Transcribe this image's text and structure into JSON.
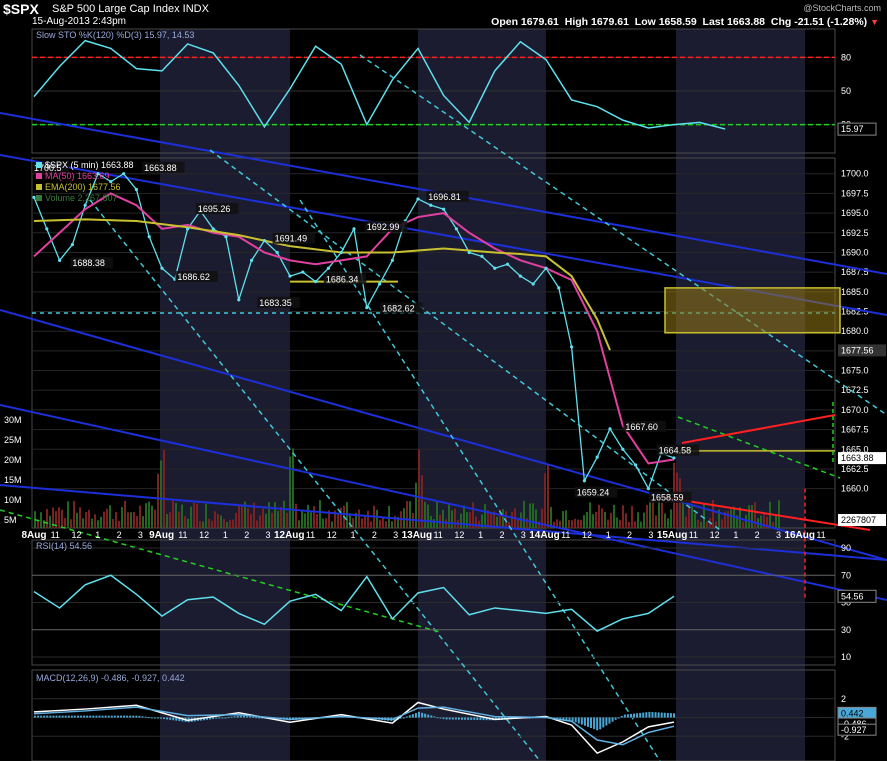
{
  "header": {
    "symbol": "$SPX",
    "name": "S&P 500 Large Cap Index INDX",
    "datetime": "15-Aug-2013 2:43pm",
    "open_label": "Open",
    "open": "1679.61",
    "high_label": "High",
    "high": "1679.61",
    "low_label": "Low",
    "low": "1658.59",
    "last_label": "Last",
    "last": "1663.88",
    "chg_label": "Chg",
    "chg": "-21.51 (-1.28%)",
    "credit": "@StockCharts.com"
  },
  "colors": {
    "price": "#5fe0ee",
    "ma50": "#e040a0",
    "ema200": "#c8c030",
    "dashed_cyan": "#40c8d8",
    "blue_channel": "#1c2fd8",
    "red_line": "#ff2020",
    "green_dash": "#20d020",
    "panel_border": "#4a4a4a",
    "shade": "#1c1c30"
  },
  "chart_data": [
    {
      "type": "line",
      "title": "Slow STO %K(120) %D(3)",
      "legend": [
        {
          "label": "Slow STO %K(120) %D(3)",
          "value": "15.97, 14.53"
        }
      ],
      "ylim": [
        0,
        100
      ],
      "y_ticks": [
        "80",
        "50",
        "20"
      ],
      "reference_lines": [
        {
          "value": 80,
          "color": "red"
        },
        {
          "value": 20,
          "color": "green"
        }
      ],
      "last_value": "15.97",
      "series": [
        {
          "name": "%K",
          "x": [
            0,
            1,
            2,
            3,
            4,
            5,
            6,
            7,
            8,
            9,
            10,
            11,
            12,
            13,
            14,
            15,
            16,
            17,
            18,
            19,
            20,
            21,
            22,
            23,
            24,
            25,
            26,
            27
          ],
          "values": [
            45,
            72,
            95,
            88,
            70,
            68,
            92,
            84,
            55,
            18,
            52,
            90,
            74,
            20,
            60,
            88,
            46,
            22,
            68,
            94,
            78,
            42,
            36,
            24,
            17,
            20,
            22,
            16
          ]
        }
      ]
    },
    {
      "type": "line",
      "title": "$SPX (5 min)",
      "legend": [
        {
          "label": "$SPX (5 min)",
          "value": "1663.88"
        },
        {
          "label": "MA(50)",
          "value": "1663.69"
        },
        {
          "label": "EMA(200)",
          "value": "1677.56"
        },
        {
          "label": "Volume",
          "value": "2,267,807"
        }
      ],
      "ylim": [
        1655,
        1702
      ],
      "y_ticks": [
        "1700.0",
        "1697.5",
        "1695.0",
        "1692.5",
        "1690.0",
        "1687.5",
        "1685.0",
        "1682.5",
        "1680.0",
        "1677.5",
        "1675.0",
        "1672.5",
        "1670.0",
        "1667.5",
        "1665.0",
        "1662.5",
        "1660.0"
      ],
      "last_badges": [
        "1677.56",
        "1663.88",
        "2267807"
      ],
      "annotations": [
        {
          "label": "1688.38",
          "x": 1.5,
          "y": 1688.38
        },
        {
          "label": "1686.62",
          "x": 5.6,
          "y": 1686.62
        },
        {
          "label": "1695.26",
          "x": 6.4,
          "y": 1695.26
        },
        {
          "label": "1691.49",
          "x": 9.4,
          "y": 1691.49
        },
        {
          "label": "1683.35",
          "x": 8.8,
          "y": 1683.35
        },
        {
          "label": "1686.34",
          "x": 11.4,
          "y": 1686.34
        },
        {
          "label": "1692.99",
          "x": 13.0,
          "y": 1692.99
        },
        {
          "label": "1682.62",
          "x": 13.6,
          "y": 1682.62
        },
        {
          "label": "1696.81",
          "x": 15.4,
          "y": 1696.81
        },
        {
          "label": "1667.60",
          "x": 23.1,
          "y": 1667.6
        },
        {
          "label": "1664.58",
          "x": 24.4,
          "y": 1664.58
        },
        {
          "label": "1659.24",
          "x": 21.2,
          "y": 1659.24
        },
        {
          "label": "1658.59",
          "x": 24.1,
          "y": 1658.59
        },
        {
          "label": "1700.5",
          "x": 0,
          "y": 1700.5
        },
        {
          "label": "1663.88",
          "x": 4.3,
          "y": 1700.5
        }
      ],
      "x_labels": [
        "8Aug",
        "11",
        "12",
        "1",
        "2",
        "3",
        "9Aug",
        "11",
        "12",
        "1",
        "2",
        "3",
        "12Aug",
        "11",
        "12",
        "1",
        "2",
        "3",
        "13Aug",
        "11",
        "12",
        "1",
        "2",
        "3",
        "14Aug",
        "11",
        "12",
        "1",
        "2",
        "3",
        "15Aug",
        "11",
        "12",
        "1",
        "2",
        "3",
        "16Aug",
        "11"
      ],
      "series": [
        {
          "name": "$SPX (5 min)",
          "x": [
            0,
            0.5,
            1,
            1.5,
            2,
            2.5,
            3,
            3.5,
            4,
            4.5,
            5,
            5.5,
            6,
            6.5,
            7,
            7.5,
            8,
            8.5,
            9,
            9.5,
            10,
            10.5,
            11,
            11.5,
            12,
            12.5,
            13,
            13.5,
            14,
            14.5,
            15,
            15.5,
            16,
            16.5,
            17,
            17.5,
            18,
            18.5,
            19,
            19.5,
            20,
            20.5,
            21,
            21.5,
            22,
            22.5,
            23,
            23.5,
            24,
            24.5,
            25
          ],
          "values": [
            1697,
            1693,
            1689,
            1691,
            1696,
            1700,
            1699,
            1700,
            1698,
            1692,
            1688,
            1686.6,
            1693,
            1695.3,
            1693,
            1692,
            1684,
            1689,
            1691.5,
            1690,
            1687,
            1687.5,
            1686.3,
            1688,
            1690,
            1693,
            1683,
            1686,
            1689,
            1694,
            1696.8,
            1696,
            1695.5,
            1693,
            1690,
            1689.5,
            1688,
            1688.5,
            1687,
            1686,
            1688,
            1685.5,
            1678,
            1661,
            1664,
            1667.6,
            1665,
            1663,
            1660,
            1664.5,
            1663.9
          ]
        },
        {
          "name": "MA(50)",
          "x": [
            0,
            1,
            2,
            3,
            4,
            5,
            6,
            7,
            8,
            9,
            10,
            11,
            12,
            13,
            14,
            15,
            16,
            17,
            18,
            19,
            20,
            21,
            22,
            23,
            24,
            25
          ],
          "values": [
            1689.5,
            1692.5,
            1695.5,
            1697.5,
            1696,
            1693,
            1693.5,
            1692.5,
            1692,
            1690,
            1689,
            1688.5,
            1689,
            1689.5,
            1693,
            1694.5,
            1695,
            1692.5,
            1690.5,
            1689,
            1688,
            1686.5,
            1680,
            1668,
            1663.2,
            1663.7
          ]
        },
        {
          "name": "EMA(200)",
          "x": [
            0,
            2,
            4,
            6,
            8,
            10,
            12,
            14,
            16,
            18,
            19,
            20,
            21,
            22,
            22.5
          ],
          "values": [
            1694,
            1694.2,
            1694,
            1693.2,
            1692.2,
            1690.8,
            1690,
            1690,
            1690.5,
            1690,
            1689.8,
            1689.5,
            1687,
            1681.5,
            1677.6
          ]
        }
      ],
      "volume_axis": {
        "ticks": [
          "30M",
          "25M",
          "20M",
          "15M",
          "10M",
          "5M"
        ]
      }
    },
    {
      "type": "line",
      "title": "RSI(14)",
      "legend": [
        {
          "label": "RSI(14)",
          "value": "54.56"
        }
      ],
      "ylim": [
        10,
        90
      ],
      "y_ticks": [
        "90",
        "70",
        "50",
        "30",
        "10"
      ],
      "last_value": "54.56",
      "series": [
        {
          "name": "RSI(14)",
          "x": [
            0,
            1,
            2,
            3,
            4,
            5,
            6,
            7,
            8,
            9,
            10,
            11,
            12,
            13,
            14,
            15,
            16,
            17,
            18,
            19,
            20,
            21,
            22,
            23,
            24,
            25
          ],
          "values": [
            58,
            46,
            63,
            70,
            56,
            40,
            52,
            54,
            42,
            34,
            51,
            56,
            44,
            69,
            38,
            57,
            61,
            41,
            46,
            44,
            42,
            45,
            29,
            38,
            42,
            54.6
          ]
        }
      ]
    },
    {
      "type": "line",
      "title": "MACD(12,26,9)",
      "legend": [
        {
          "label": "MACD(12,26,9)",
          "value": "-0.486, -0.927, 0.442"
        }
      ],
      "ylim": [
        -4,
        4
      ],
      "y_ticks": [
        "2",
        "0",
        "-2"
      ],
      "last_values": [
        "0.442",
        "-0.486",
        "-0.927"
      ],
      "series": [
        {
          "name": "MACD",
          "x": [
            0,
            2,
            4,
            6,
            8,
            10,
            12,
            14,
            15,
            16,
            18,
            20,
            21,
            22,
            23,
            24,
            25
          ],
          "values": [
            0.6,
            0.9,
            1.3,
            -0.3,
            0.5,
            -0.5,
            0.3,
            -0.6,
            1.6,
            0.9,
            -0.2,
            0.1,
            -0.8,
            -3.8,
            -2.6,
            -1.0,
            -0.49
          ]
        },
        {
          "name": "Signal",
          "x": [
            0,
            2,
            4,
            6,
            8,
            10,
            12,
            14,
            15,
            16,
            18,
            20,
            21,
            22,
            23,
            24,
            25
          ],
          "values": [
            0.4,
            0.7,
            1.1,
            0.2,
            0.3,
            -0.2,
            0.1,
            -0.2,
            1.0,
            1.1,
            0.1,
            0.0,
            -0.4,
            -2.4,
            -2.9,
            -1.6,
            -0.93
          ]
        }
      ]
    }
  ]
}
